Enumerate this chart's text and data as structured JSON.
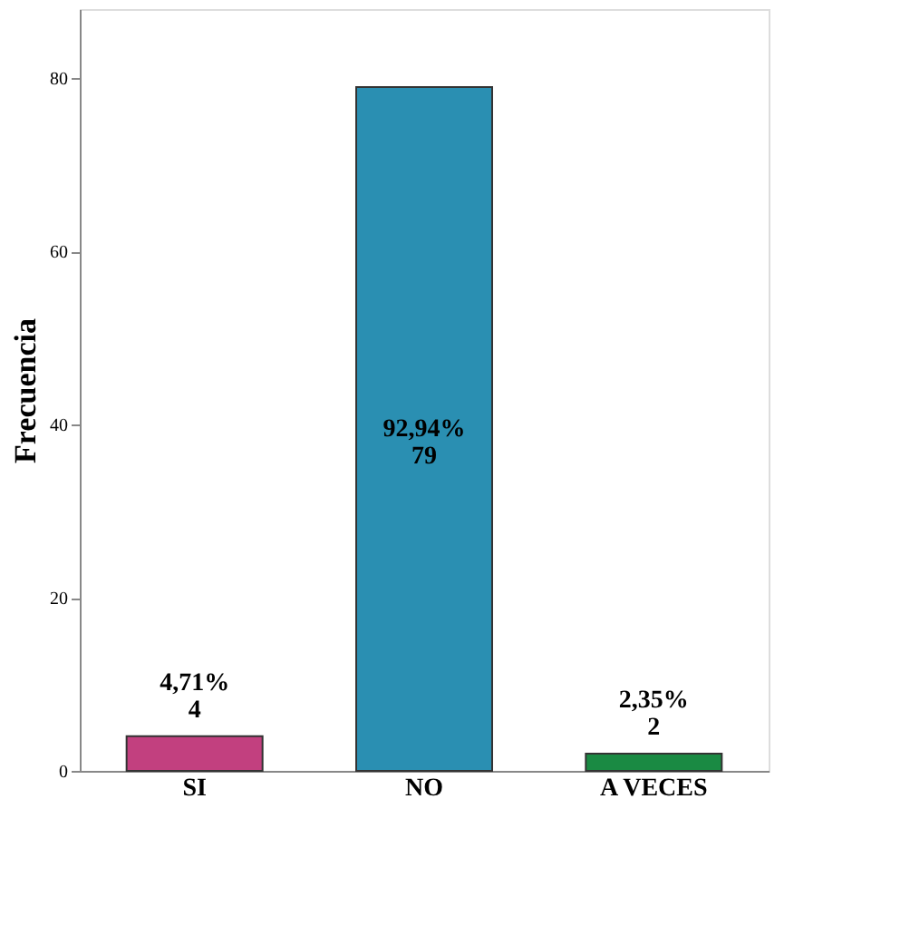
{
  "chart_data": {
    "type": "bar",
    "ylabel": "Frecuencia",
    "categories": [
      "SI",
      "NO",
      "A VECES"
    ],
    "values": [
      4,
      79,
      2
    ],
    "colors": [
      "#c2407f",
      "#2a8fb2",
      "#1a8a43"
    ],
    "value_labels": [
      "4,71%\n4",
      "92,94%\n79",
      "2,35%\n2"
    ],
    "ylim": [
      0,
      88
    ],
    "yticks": [
      0,
      20,
      40,
      60,
      80
    ],
    "grid": false
  }
}
